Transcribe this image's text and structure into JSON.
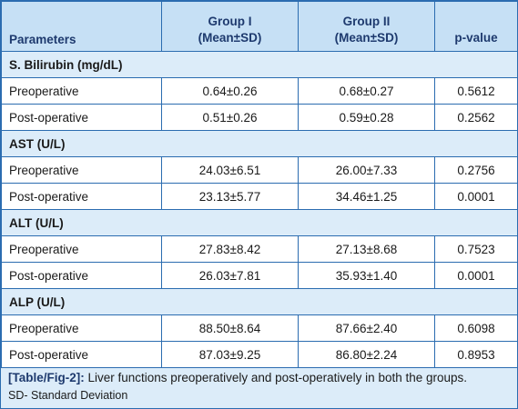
{
  "header": {
    "col1": "Parameters",
    "col2_line1": "Group I",
    "col2_line2": "(Mean±SD)",
    "col3_line1": "Group II",
    "col3_line2": "(Mean±SD)",
    "col4": "p-value"
  },
  "sections": [
    {
      "title": "S. Bilirubin (mg/dL)",
      "rows": [
        {
          "label": "Preoperative",
          "g1": "0.64±0.26",
          "g2": "0.68±0.27",
          "p": "0.5612"
        },
        {
          "label": "Post-operative",
          "g1": "0.51±0.26",
          "g2": "0.59±0.28",
          "p": "0.2562"
        }
      ]
    },
    {
      "title": "AST (U/L)",
      "rows": [
        {
          "label": "Preoperative",
          "g1": "24.03±6.51",
          "g2": "26.00±7.33",
          "p": "0.2756"
        },
        {
          "label": "Post-operative",
          "g1": "23.13±5.77",
          "g2": "34.46±1.25",
          "p": "0.0001"
        }
      ]
    },
    {
      "title": "ALT (U/L)",
      "rows": [
        {
          "label": "Preoperative",
          "g1": "27.83±8.42",
          "g2": "27.13±8.68",
          "p": "0.7523"
        },
        {
          "label": "Post-operative",
          "g1": "26.03±7.81",
          "g2": "35.93±1.40",
          "p": "0.0001"
        }
      ]
    },
    {
      "title": "ALP (U/L)",
      "rows": [
        {
          "label": "Preoperative",
          "g1": "88.50±8.64",
          "g2": "87.66±2.40",
          "p": "0.6098"
        },
        {
          "label": "Post-operative",
          "g1": "87.03±9.25",
          "g2": "86.80±2.24",
          "p": "0.8953"
        }
      ]
    }
  ],
  "caption": {
    "tag": "[Table/Fig-2]:",
    "text": "Liver functions preoperatively and post-operatively in both the groups."
  },
  "note": "SD- Standard Deviation"
}
